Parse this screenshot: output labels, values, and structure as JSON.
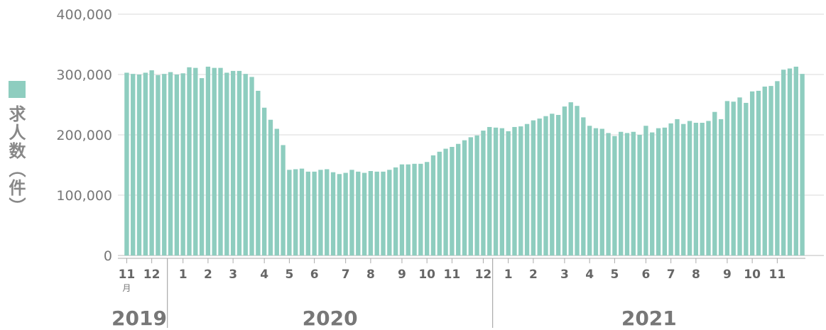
{
  "chart_data": {
    "type": "bar",
    "ylabel": "求人数（件）",
    "ylim": [
      0,
      400000
    ],
    "yticks": [
      0,
      100000,
      200000,
      300000,
      400000
    ],
    "ytick_labels": [
      "0",
      "100,000",
      "200,000",
      "300,000",
      "400,000"
    ],
    "grid": true,
    "legend_position": "left",
    "colors": {
      "bar": "#8ecdbf",
      "grid": "#d9d9d9",
      "axis_text": "#777777"
    },
    "month_suffix": "月",
    "year_labels": [
      "2019",
      "2020",
      "2021"
    ],
    "month_ticks": [
      {
        "label": "11",
        "index": 0
      },
      {
        "label": "12",
        "index": 4
      },
      {
        "label": "1",
        "index": 9
      },
      {
        "label": "2",
        "index": 13
      },
      {
        "label": "3",
        "index": 17
      },
      {
        "label": "4",
        "index": 22
      },
      {
        "label": "5",
        "index": 26
      },
      {
        "label": "6",
        "index": 30
      },
      {
        "label": "7",
        "index": 35
      },
      {
        "label": "8",
        "index": 39
      },
      {
        "label": "9",
        "index": 44
      },
      {
        "label": "10",
        "index": 48
      },
      {
        "label": "11",
        "index": 52
      },
      {
        "label": "12",
        "index": 57
      },
      {
        "label": "1",
        "index": 61
      },
      {
        "label": "2",
        "index": 65
      },
      {
        "label": "3",
        "index": 70
      },
      {
        "label": "4",
        "index": 74
      },
      {
        "label": "5",
        "index": 78
      },
      {
        "label": "6",
        "index": 83
      },
      {
        "label": "7",
        "index": 87
      },
      {
        "label": "8",
        "index": 91
      },
      {
        "label": "9",
        "index": 96
      },
      {
        "label": "10",
        "index": 100
      },
      {
        "label": "11",
        "index": 104
      }
    ],
    "values": [
      303000,
      301000,
      300000,
      303000,
      307000,
      299000,
      301000,
      304000,
      300000,
      302000,
      312000,
      311000,
      294000,
      313000,
      311000,
      311000,
      303000,
      306000,
      306000,
      301000,
      296000,
      273000,
      245000,
      225000,
      210000,
      183000,
      142000,
      143000,
      144000,
      139000,
      139000,
      142000,
      143000,
      138000,
      135000,
      137000,
      142000,
      139000,
      137000,
      140000,
      139000,
      139000,
      142000,
      146000,
      151000,
      151000,
      152000,
      152000,
      155000,
      166000,
      172000,
      177000,
      180000,
      185000,
      191000,
      196000,
      199000,
      207000,
      213000,
      212000,
      211000,
      206000,
      213000,
      214000,
      218000,
      224000,
      227000,
      231000,
      235000,
      233000,
      247000,
      254000,
      248000,
      229000,
      215000,
      211000,
      210000,
      203000,
      198000,
      205000,
      203000,
      205000,
      200000,
      215000,
      204000,
      211000,
      212000,
      219000,
      226000,
      218000,
      223000,
      220000,
      220000,
      223000,
      238000,
      226000,
      256000,
      255000,
      262000,
      253000,
      272000,
      273000,
      280000,
      281000,
      289000,
      308000,
      310000,
      313000,
      301000
    ]
  }
}
